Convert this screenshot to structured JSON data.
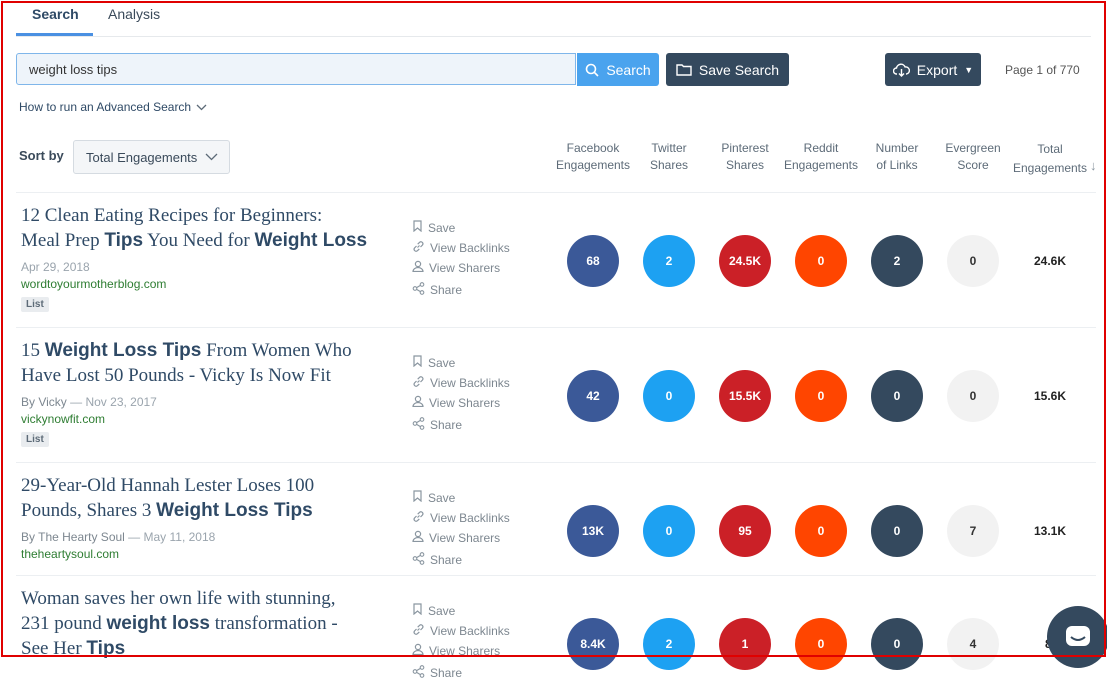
{
  "tabs": [
    {
      "label": "Search",
      "active": true
    },
    {
      "label": "Analysis",
      "active": false
    }
  ],
  "search": {
    "value": "weight loss tips",
    "search_button": "Search",
    "save_button": "Save Search",
    "export_button": "Export",
    "page_info": "Page 1 of 770",
    "advanced_link": "How to run an Advanced Search"
  },
  "sort": {
    "label": "Sort by",
    "selected": "Total Engagements"
  },
  "columns": [
    {
      "line1": "Facebook",
      "line2": "Engagements"
    },
    {
      "line1": "Twitter",
      "line2": "Shares"
    },
    {
      "line1": "Pinterest",
      "line2": "Shares"
    },
    {
      "line1": "Reddit",
      "line2": "Engagements"
    },
    {
      "line1": "Number",
      "line2": "of Links"
    },
    {
      "line1": "Evergreen",
      "line2": "Score"
    },
    {
      "line1": "Total",
      "line2": "Engagements"
    }
  ],
  "actions": [
    "Save",
    "View Backlinks",
    "View Sharers",
    "Share"
  ],
  "colors": {
    "facebook": "#3b5998",
    "twitter": "#1da1f2",
    "pinterest": "#cb2027",
    "reddit": "#ff4500",
    "links": "#34495e",
    "evergreen": "#f2f2f2",
    "frame": "#e00000"
  },
  "results": [
    {
      "title_lines": [
        [
          {
            "t": "12 Clean Eating Recipes for Beginners:",
            "b": false
          }
        ],
        [
          {
            "t": "Meal Prep ",
            "b": false
          },
          {
            "t": "Tips",
            "b": true
          },
          {
            "t": " You Need for ",
            "b": false
          },
          {
            "t": "Weight Loss",
            "b": true
          }
        ]
      ],
      "author": "",
      "date": "Apr 29, 2018",
      "domain": "wordtoyourmotherblog.com",
      "badge": "List",
      "facebook": "68",
      "twitter": "2",
      "pinterest": "24.5K",
      "reddit": "0",
      "links": "2",
      "evergreen": "0",
      "total": "24.6K"
    },
    {
      "title_lines": [
        [
          {
            "t": "15 ",
            "b": false
          },
          {
            "t": "Weight Loss Tips",
            "b": true
          },
          {
            "t": " From Women Who",
            "b": false
          }
        ],
        [
          {
            "t": "Have Lost 50 Pounds - Vicky Is Now Fit",
            "b": false
          }
        ]
      ],
      "author": "By Vicky",
      "date": "Nov 23, 2017",
      "domain": "vickynowfit.com",
      "badge": "List",
      "facebook": "42",
      "twitter": "0",
      "pinterest": "15.5K",
      "reddit": "0",
      "links": "0",
      "evergreen": "0",
      "total": "15.6K"
    },
    {
      "title_lines": [
        [
          {
            "t": "29-Year-Old Hannah Lester Loses 100",
            "b": false
          }
        ],
        [
          {
            "t": "Pounds, Shares 3 ",
            "b": false
          },
          {
            "t": "Weight Loss Tips",
            "b": true
          }
        ]
      ],
      "author": "By The Hearty Soul",
      "date": "May 11, 2018",
      "domain": "theheartysoul.com",
      "badge": "",
      "facebook": "13K",
      "twitter": "0",
      "pinterest": "95",
      "reddit": "0",
      "links": "0",
      "evergreen": "7",
      "total": "13.1K"
    },
    {
      "title_lines": [
        [
          {
            "t": "Woman saves her own life with stunning,",
            "b": false
          }
        ],
        [
          {
            "t": "231 pound ",
            "b": false
          },
          {
            "t": "weight loss",
            "b": true
          },
          {
            "t": " transformation -",
            "b": false
          }
        ],
        [
          {
            "t": "See Her ",
            "b": false
          },
          {
            "t": "Tips",
            "b": true
          }
        ]
      ],
      "author": "",
      "date": "",
      "domain": "",
      "badge": "",
      "facebook": "8.4K",
      "twitter": "2",
      "pinterest": "1",
      "reddit": "0",
      "links": "0",
      "evergreen": "4",
      "total": "8."
    }
  ]
}
